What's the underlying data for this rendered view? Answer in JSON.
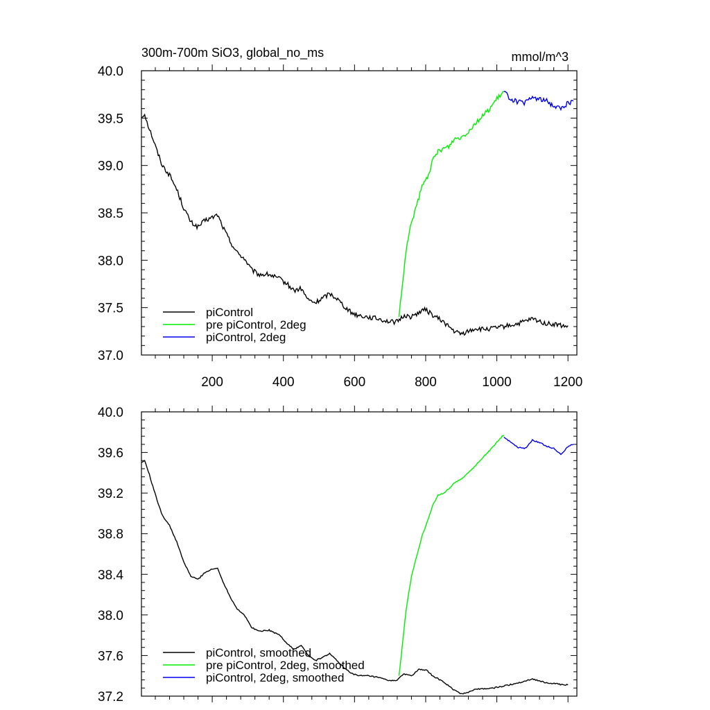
{
  "figure": {
    "title_left": "300m-700m SiO3, global_no_ms",
    "title_right": "mmol/m^3"
  },
  "chart_data": [
    {
      "type": "line",
      "title": "300m-700m SiO3, global_no_ms",
      "units": "mmol/m^3",
      "xlim": [
        1,
        1225
      ],
      "ylim": [
        37.0,
        40.0
      ],
      "xticks": [
        200,
        400,
        600,
        800,
        1000,
        1200
      ],
      "xtick_labels": [
        "200",
        "400",
        "600",
        "800",
        "1000",
        "1200"
      ],
      "yticks": [
        37.0,
        37.5,
        38.0,
        38.5,
        39.0,
        39.5,
        40.0
      ],
      "ytick_labels": [
        "37.0",
        "37.5",
        "38.0",
        "38.5",
        "39.0",
        "39.5",
        "40.0"
      ],
      "grid": false,
      "legend_position": "bottom-left",
      "noise": 0.025,
      "series": [
        {
          "name": "piControl",
          "color": "#000000",
          "x": [
            1,
            10,
            20,
            30,
            45,
            60,
            80,
            100,
            120,
            140,
            160,
            180,
            200,
            215,
            230,
            250,
            270,
            290,
            310,
            330,
            360,
            390,
            410,
            430,
            450,
            470,
            490,
            510,
            530,
            550,
            570,
            590,
            610,
            640,
            670,
            700,
            720,
            740,
            760,
            780,
            800,
            820,
            850,
            880,
            900,
            920,
            940,
            960,
            990,
            1020,
            1060,
            1100,
            1140,
            1170,
            1190,
            1200
          ],
          "y": [
            39.5,
            39.55,
            39.42,
            39.32,
            39.15,
            39.0,
            38.9,
            38.75,
            38.55,
            38.4,
            38.35,
            38.42,
            38.45,
            38.48,
            38.35,
            38.2,
            38.08,
            38.02,
            37.9,
            37.85,
            37.85,
            37.8,
            37.75,
            37.68,
            37.7,
            37.58,
            37.55,
            37.6,
            37.65,
            37.6,
            37.52,
            37.45,
            37.42,
            37.4,
            37.38,
            37.35,
            37.35,
            37.42,
            37.4,
            37.45,
            37.48,
            37.42,
            37.35,
            37.25,
            37.22,
            37.25,
            37.28,
            37.27,
            37.28,
            37.3,
            37.33,
            37.38,
            37.33,
            37.32,
            37.3,
            37.31
          ]
        },
        {
          "name": "pre piControl, 2deg",
          "color": "#00ee00",
          "x": [
            725,
            735,
            745,
            760,
            775,
            790,
            805,
            820,
            835,
            850,
            865,
            880,
            900,
            920,
            940,
            960,
            980,
            1000,
            1015,
            1020
          ],
          "y": [
            37.4,
            37.75,
            38.1,
            38.4,
            38.58,
            38.78,
            38.88,
            39.05,
            39.15,
            39.18,
            39.2,
            39.28,
            39.3,
            39.36,
            39.45,
            39.52,
            39.6,
            39.7,
            39.76,
            39.78
          ]
        },
        {
          "name": "piControl, 2deg",
          "color": "#0000ee",
          "x": [
            1020,
            1040,
            1060,
            1080,
            1100,
            1120,
            1140,
            1160,
            1180,
            1200,
            1215
          ],
          "y": [
            39.78,
            39.7,
            39.67,
            39.66,
            39.72,
            39.7,
            39.68,
            39.63,
            39.6,
            39.66,
            39.68
          ]
        }
      ]
    },
    {
      "type": "line",
      "xlim": [
        1,
        1225
      ],
      "ylim": [
        37.2,
        40.0
      ],
      "xticks": [
        200,
        400,
        600,
        800,
        1000,
        1200
      ],
      "xtick_labels": [],
      "yticks": [
        37.2,
        37.6,
        38.0,
        38.4,
        38.8,
        39.2,
        39.6,
        40.0
      ],
      "ytick_labels": [
        "37.2",
        "37.6",
        "38.0",
        "38.4",
        "38.8",
        "39.2",
        "39.6",
        "40.0"
      ],
      "grid": false,
      "legend_position": "bottom-left",
      "noise": 0.006,
      "series": [
        {
          "name": "piControl, smoothed",
          "color": "#000000",
          "x": [
            1,
            10,
            20,
            30,
            45,
            60,
            80,
            100,
            120,
            140,
            160,
            180,
            200,
            215,
            230,
            250,
            270,
            290,
            310,
            330,
            360,
            390,
            410,
            430,
            450,
            470,
            490,
            510,
            530,
            550,
            570,
            590,
            610,
            640,
            670,
            700,
            720,
            740,
            760,
            780,
            800,
            820,
            850,
            880,
            900,
            920,
            940,
            960,
            990,
            1020,
            1060,
            1100,
            1140,
            1170,
            1190,
            1200
          ],
          "y": [
            39.5,
            39.52,
            39.42,
            39.3,
            39.13,
            38.98,
            38.88,
            38.72,
            38.52,
            38.38,
            38.35,
            38.42,
            38.45,
            38.46,
            38.33,
            38.18,
            38.06,
            38.0,
            37.88,
            37.84,
            37.85,
            37.8,
            37.72,
            37.66,
            37.7,
            37.6,
            37.55,
            37.58,
            37.62,
            37.55,
            37.48,
            37.43,
            37.4,
            37.4,
            37.38,
            37.35,
            37.36,
            37.42,
            37.4,
            37.46,
            37.46,
            37.4,
            37.34,
            37.26,
            37.22,
            37.24,
            37.27,
            37.27,
            37.28,
            37.3,
            37.33,
            37.37,
            37.33,
            37.32,
            37.31,
            37.31
          ]
        },
        {
          "name": "pre piControl, 2deg, smoothed",
          "color": "#00ee00",
          "x": [
            725,
            735,
            745,
            760,
            775,
            790,
            805,
            820,
            835,
            850,
            865,
            880,
            900,
            920,
            940,
            960,
            980,
            1000,
            1015,
            1020
          ],
          "y": [
            37.4,
            37.72,
            38.05,
            38.38,
            38.58,
            38.78,
            38.92,
            39.08,
            39.18,
            39.2,
            39.24,
            39.3,
            39.34,
            39.4,
            39.47,
            39.55,
            39.62,
            39.7,
            39.76,
            39.77
          ]
        },
        {
          "name": "piControl, 2deg, smoothed",
          "color": "#0000ee",
          "x": [
            1020,
            1040,
            1060,
            1080,
            1100,
            1120,
            1140,
            1160,
            1180,
            1200,
            1215
          ],
          "y": [
            39.75,
            39.7,
            39.65,
            39.64,
            39.72,
            39.7,
            39.66,
            39.64,
            39.58,
            39.66,
            39.68
          ]
        }
      ]
    }
  ]
}
